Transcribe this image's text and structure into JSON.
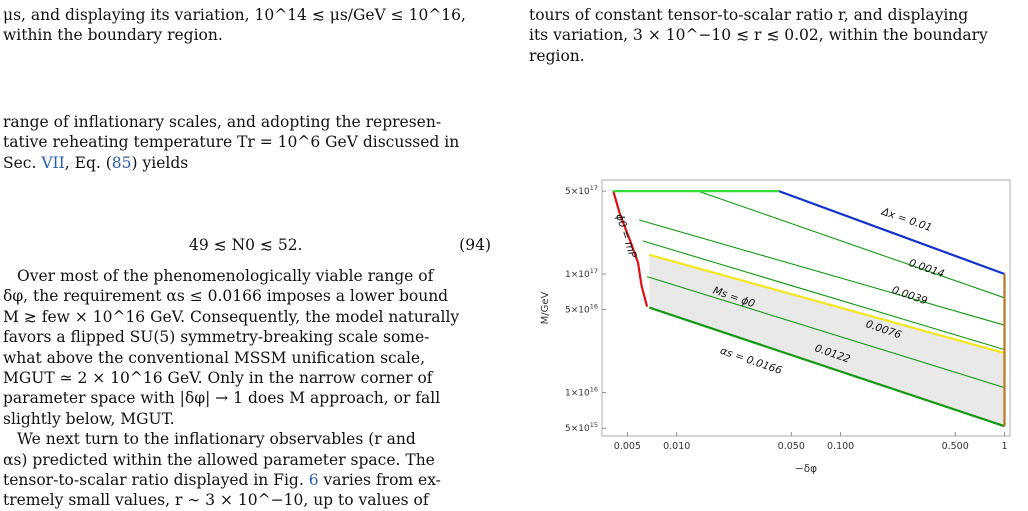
{
  "left_col": {
    "top_line1": "μs, and displaying its variation, 10^14 ≲ μs/GeV ≤ 10^16,",
    "top_line2": "within the boundary region.",
    "p1_line1": "range of inflationary scales, and adopting the represen-",
    "p1_line2": "tative reheating temperature Tr = 10^6 GeV discussed in",
    "p1_line3_pre": "Sec. ",
    "p1_line3_ref1": "VII",
    "p1_line3_mid": ", Eq. (",
    "p1_line3_ref2": "85",
    "p1_line3_post": ") yields",
    "equation": "49 ≲ N0 ≲ 52.",
    "equation_number": "(94)",
    "p2_line1": "Over most of the phenomenologically viable range of",
    "p2_line2": "δφ, the requirement αs ≤ 0.0166 imposes a lower bound",
    "p2_line3": "M ≳ few × 10^16 GeV. Consequently, the model naturally",
    "p2_line4": "favors a flipped SU(5) symmetry-breaking scale some-",
    "p2_line5": "what above the conventional MSSM unification scale,",
    "p2_line6": "MGUT ≃ 2 × 10^16 GeV. Only in the narrow corner of",
    "p2_line7": "parameter space with |δφ| → 1 does M approach, or fall",
    "p2_line8": "slightly below, MGUT.",
    "p3_line1": "We next turn to the inflationary observables (r and",
    "p3_line2": "αs) predicted within the allowed parameter space. The",
    "p3_line3_pre": "tensor-to-scalar ratio displayed in Fig. ",
    "p3_line3_ref": "6",
    "p3_line3_post": " varies from ex-",
    "p3_line4": "tremely small values, r ∼ 3 × 10^−10, up to values of"
  },
  "right_col": {
    "line1": "tours of constant tensor-to-scalar ratio r, and displaying",
    "line2": "its variation, 3 × 10^−10 ≲ r ≲ 0.02, within the boundary",
    "line3": "region."
  },
  "chart_data": {
    "type": "line",
    "xlabel": "−δφ",
    "ylabel": "M/GeV",
    "x_scale": "log",
    "y_scale": "log",
    "xlim": [
      0.0035,
      1.08
    ],
    "ylim": [
      4300000000000000.0,
      6.2e+17
    ],
    "x_ticks": [
      {
        "value": 0.005,
        "label": "0.005"
      },
      {
        "value": 0.01,
        "label": "0.010"
      },
      {
        "value": 0.05,
        "label": "0.050"
      },
      {
        "value": 0.1,
        "label": "0.100"
      },
      {
        "value": 0.5,
        "label": "0.500"
      },
      {
        "value": 1.0,
        "label": "1"
      }
    ],
    "y_ticks": [
      {
        "value": 5000000000000000.0,
        "label": "5×10^15"
      },
      {
        "value": 1e+16,
        "label": "1×10^16"
      },
      {
        "value": 5e+16,
        "label": "5×10^16"
      },
      {
        "value": 1e+17,
        "label": "1×10^17"
      },
      {
        "value": 5e+17,
        "label": "5×10^17"
      }
    ],
    "shaded_region": [
      [
        0.0068,
        1.45e+17
      ],
      [
        1.0,
        2.15e+16
      ],
      [
        1.0,
        5200000000000000.0
      ],
      [
        0.0068,
        5.2e+16
      ]
    ],
    "boundaries": [
      {
        "label": "ϕ0 = mP",
        "color": "#dd1111",
        "points": [
          [
            0.0041,
            5e+17
          ],
          [
            0.0045,
            3.2e+17
          ],
          [
            0.0052,
            1.9e+17
          ],
          [
            0.0058,
            1.25e+17
          ],
          [
            0.0061,
            8e+16
          ],
          [
            0.0066,
            5.3e+16
          ]
        ]
      },
      {
        "label": "Δx = 0.01",
        "color": "#1133cc",
        "points": [
          [
            0.042,
            5e+17
          ],
          [
            1.0,
            1e+17
          ]
        ]
      },
      {
        "label": "Ms = ϕ0",
        "color": "#f4e61c",
        "points": [
          [
            0.0068,
            1.45e+17
          ],
          [
            1.0,
            2.15e+16
          ]
        ]
      },
      {
        "label": "αs = 0.0166",
        "color": "#119911",
        "points": [
          [
            0.0068,
            5.2e+16
          ],
          [
            1.0,
            5200000000000000.0
          ]
        ]
      },
      {
        "label": "",
        "color": "#33dd33",
        "points": [
          [
            0.0041,
            5e+17
          ],
          [
            0.042,
            5e+17
          ]
        ]
      },
      {
        "label": "",
        "color": "#b87820",
        "points": [
          [
            1.0,
            1e+17
          ],
          [
            1.0,
            5200000000000000.0
          ]
        ]
      }
    ],
    "contours": [
      {
        "label": "0.0014",
        "color": "#119911",
        "points": [
          [
            0.0135,
            5e+17
          ],
          [
            1.0,
            6.3e+16
          ]
        ]
      },
      {
        "label": "0.0039",
        "color": "#119911",
        "points": [
          [
            0.0059,
            2.85e+17
          ],
          [
            1.0,
            3.7e+16
          ]
        ]
      },
      {
        "label": "0.0076",
        "color": "#119911",
        "points": [
          [
            0.0062,
            1.9e+17
          ],
          [
            1.0,
            2.3e+16
          ]
        ]
      },
      {
        "label": "0.0122",
        "color": "#119911",
        "points": [
          [
            0.0066,
            9.5e+16
          ],
          [
            1.0,
            1.1e+16
          ]
        ]
      }
    ],
    "annotations": [
      {
        "text": "Δx = 0.01",
        "x": 0.25,
        "y": 2.7e+17,
        "angle": 19
      },
      {
        "text": "0.0014",
        "x": 0.33,
        "y": 1.05e+17,
        "angle": 19
      },
      {
        "text": "0.0039",
        "x": 0.26,
        "y": 6.2e+16,
        "angle": 19
      },
      {
        "text": "0.0076",
        "x": 0.18,
        "y": 3.2e+16,
        "angle": 19
      },
      {
        "text": "0.0122",
        "x": 0.088,
        "y": 2e+16,
        "angle": 19
      },
      {
        "text": "αs = 0.0166",
        "x": 0.028,
        "y": 1.75e+16,
        "angle": 19
      },
      {
        "text": "Ms = ϕ0",
        "x": 0.022,
        "y": 6e+16,
        "angle": 19
      },
      {
        "text": "ϕ0 = mP",
        "x": 0.0047,
        "y": 2.05e+17,
        "angle": 72
      }
    ]
  }
}
